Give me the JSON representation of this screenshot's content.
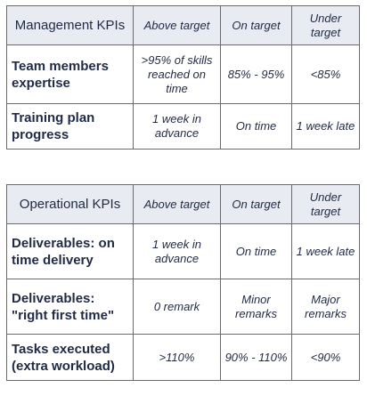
{
  "management": {
    "title": "Management KPIs",
    "columns": [
      "Above target",
      "On target",
      "Under target"
    ],
    "rows": [
      {
        "label": "Team members expertise",
        "above": ">95% of skills reached on time",
        "on": "85% - 95%",
        "under": "<85%"
      },
      {
        "label": "Training plan progress",
        "above": "1 week in advance",
        "on": "On time",
        "under": "1 week late"
      }
    ]
  },
  "operational": {
    "title": "Operational KPIs",
    "columns": [
      "Above target",
      "On target",
      "Under target"
    ],
    "rows": [
      {
        "label": "Deliverables: on time delivery",
        "above": "1 week in advance",
        "on": "On time",
        "under": "1 week late"
      },
      {
        "label": "Deliverables: \"right first time\"",
        "above": "0 remark",
        "on": "Minor remarks",
        "under": "Major remarks"
      },
      {
        "label": "Tasks executed (extra workload)",
        "above": ">110%",
        "on": "90% - 110%",
        "under": "<90%"
      }
    ]
  },
  "colors": {
    "header_bg": "#e8ebf2",
    "border": "#6b6b6b",
    "text": "#1f2a44"
  }
}
